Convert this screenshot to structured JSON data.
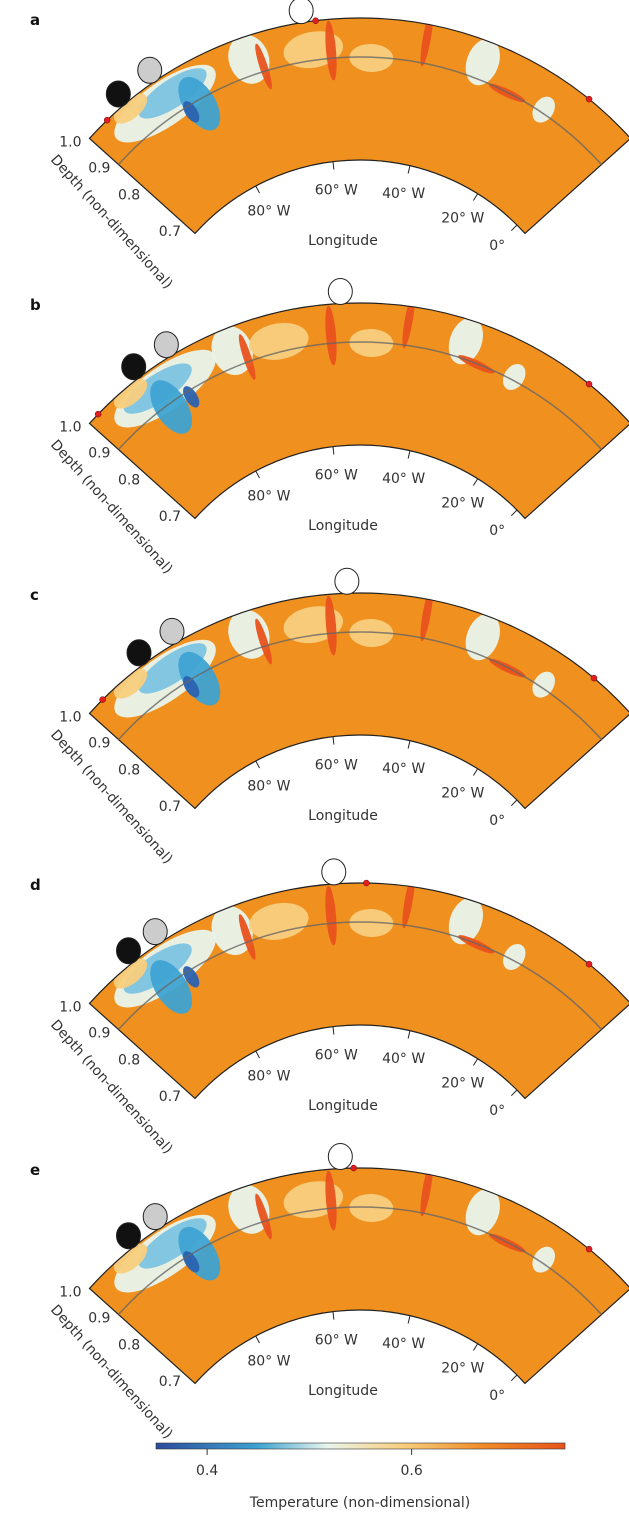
{
  "panels": [
    {
      "label": "a"
    },
    {
      "label": "b"
    },
    {
      "label": "c"
    },
    {
      "label": "d"
    },
    {
      "label": "e"
    }
  ],
  "axes": {
    "longitude_ticks": [
      "80° W",
      "60° W",
      "40° W",
      "20° W",
      "0°"
    ],
    "longitude_label": "Longitude",
    "depth_ticks": [
      "1.0",
      "0.9",
      "0.8",
      "0.7"
    ],
    "depth_label": "Depth (non-dimensional)"
  },
  "colorbar": {
    "lim": [
      0.35,
      0.75
    ],
    "ticks": [
      0.4,
      0.6
    ],
    "label": "Temperature (non-dimensional)"
  }
}
